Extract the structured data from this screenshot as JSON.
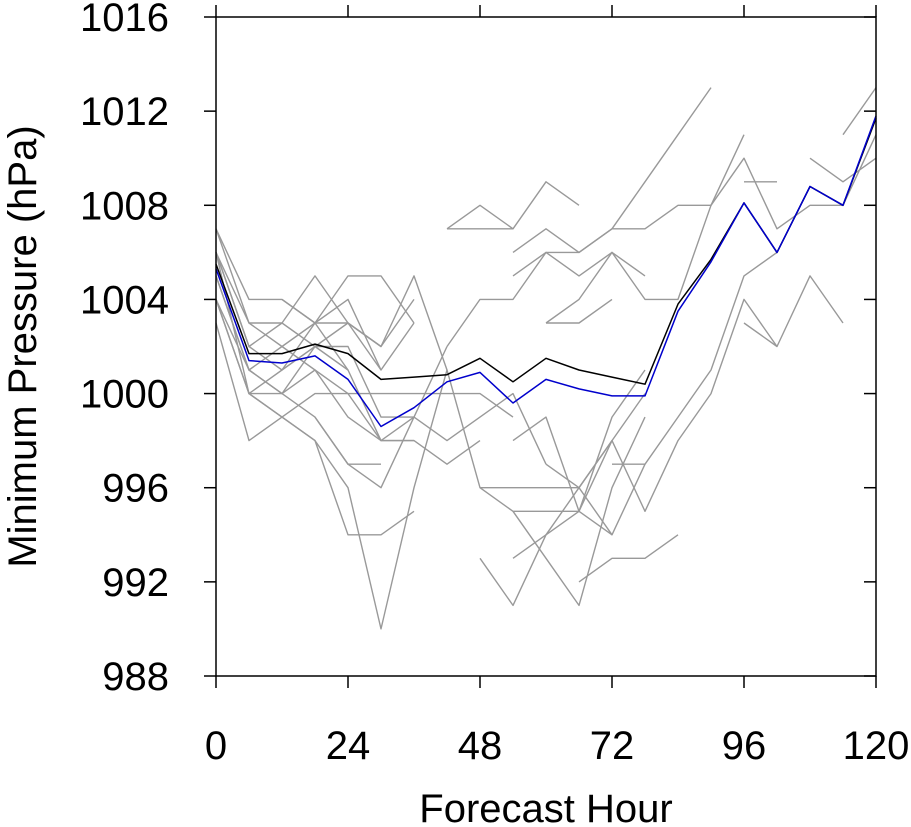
{
  "chart_data": {
    "type": "line",
    "xlabel": "Forecast Hour",
    "ylabel": "Minimum Pressure (hPa)",
    "xlim": [
      0,
      120
    ],
    "ylim": [
      988,
      1016
    ],
    "xticks": [
      0,
      24,
      48,
      72,
      96,
      120
    ],
    "yticks": [
      988,
      992,
      996,
      1000,
      1004,
      1008,
      1012,
      1016
    ],
    "grid": false,
    "legend": "none",
    "colors": {
      "members": "#999999",
      "black_line": "#000000",
      "blue_line": "#0000cc"
    },
    "series": [
      {
        "color": "#000000",
        "x": [
          0,
          6,
          12,
          18,
          24,
          30,
          36,
          42,
          48,
          54,
          60,
          66,
          72,
          78,
          84,
          90,
          96,
          102,
          108,
          114,
          120
        ],
        "y": [
          1005.5,
          1001.7,
          1001.7,
          1002.1,
          1001.7,
          1000.6,
          1000.7,
          1000.8,
          1001.5,
          1000.5,
          1001.5,
          1001.0,
          1000.7,
          1000.4,
          1003.8,
          1005.7,
          1008.1,
          1006.0,
          1008.8,
          1008.0,
          1011.7
        ]
      },
      {
        "color": "#0000cc",
        "x": [
          0,
          6,
          12,
          18,
          24,
          30,
          36,
          42,
          48,
          54,
          60,
          66,
          72,
          78,
          84,
          90,
          96,
          102,
          108,
          114,
          120
        ],
        "y": [
          1005.3,
          1001.4,
          1001.3,
          1001.6,
          1000.6,
          998.6,
          999.4,
          1000.5,
          1000.9,
          999.6,
          1000.6,
          1000.2,
          999.9,
          999.9,
          1003.5,
          1005.6,
          1008.1,
          1006.0,
          1008.8,
          1008.0,
          1011.8
        ]
      },
      {
        "color": "#999999",
        "x": [
          0,
          6,
          12,
          18,
          24
        ],
        "y": [
          1006,
          1002,
          1001,
          1003,
          1001
        ]
      },
      {
        "color": "#999999",
        "x": [
          0,
          6,
          12,
          18,
          24,
          30,
          36
        ],
        "y": [
          1007,
          1004,
          1004,
          1003,
          1005,
          1005,
          1003
        ]
      },
      {
        "color": "#999999",
        "x": [
          0,
          6,
          12,
          18,
          24,
          30,
          36
        ],
        "y": [
          1006,
          1003,
          1003,
          1005,
          1003,
          1002,
          1004
        ]
      },
      {
        "color": "#999999",
        "x": [
          0,
          6,
          12,
          18,
          24,
          30,
          36,
          42,
          48
        ],
        "y": [
          1005,
          1001,
          1002,
          1001,
          999,
          998,
          998,
          997,
          998
        ]
      },
      {
        "color": "#999999",
        "x": [
          0,
          6,
          12,
          18,
          24,
          30,
          36
        ],
        "y": [
          1004,
          1000,
          999,
          998,
          994,
          994,
          995
        ]
      },
      {
        "color": "#999999",
        "x": [
          0,
          6,
          12,
          18,
          24,
          30,
          36,
          42,
          48,
          54
        ],
        "y": [
          1003,
          998,
          999,
          1000,
          1000,
          1000,
          1000,
          1000,
          1000,
          999
        ]
      },
      {
        "color": "#999999",
        "x": [
          0,
          6,
          12,
          18,
          24,
          30
        ],
        "y": [
          1007,
          1003,
          1002,
          1003,
          1004,
          1001
        ]
      },
      {
        "color": "#999999",
        "x": [
          0,
          6,
          12,
          18,
          24,
          30,
          36
        ],
        "y": [
          1004,
          1000,
          1001,
          1002,
          1001,
          998,
          998
        ]
      },
      {
        "color": "#999999",
        "x": [
          0,
          6,
          12,
          18,
          24,
          30,
          36
        ],
        "y": [
          1006,
          1002,
          1003,
          1002,
          1003,
          1001,
          1003
        ]
      },
      {
        "color": "#999999",
        "x": [
          0,
          6,
          12,
          18,
          24,
          30,
          36,
          42
        ],
        "y": [
          1005,
          1001,
          1000,
          1001,
          1000,
          998,
          999,
          1002
        ]
      },
      {
        "color": "#999999",
        "x": [
          0,
          6,
          12,
          18,
          24,
          30
        ],
        "y": [
          1004,
          1001,
          1000,
          999,
          997,
          997
        ]
      },
      {
        "color": "#999999",
        "x": [
          0,
          6,
          12,
          18,
          24,
          30,
          36
        ],
        "y": [
          1006,
          1000,
          1000,
          1002,
          1002,
          999,
          999
        ]
      },
      {
        "color": "#999999",
        "x": [
          12,
          18,
          24,
          30,
          36,
          42
        ],
        "y": [
          1004,
          1003,
          1003,
          1002,
          1005,
          1001
        ]
      },
      {
        "color": "#999999",
        "x": [
          6,
          12,
          18,
          24,
          30,
          36,
          42,
          48,
          54,
          60,
          66,
          72,
          78
        ],
        "y": [
          1000,
          999,
          998,
          996,
          990,
          996,
          1001,
          996,
          996,
          996,
          996,
          998,
          1000
        ]
      },
      {
        "color": "#999999",
        "x": [
          18,
          24,
          30,
          36,
          42,
          48,
          54,
          60
        ],
        "y": [
          999,
          997,
          996,
          999,
          998,
          999,
          1000,
          997
        ]
      },
      {
        "color": "#999999",
        "x": [
          42,
          48,
          54,
          60,
          66
        ],
        "y": [
          1007,
          1008,
          1007,
          1009,
          1008
        ]
      },
      {
        "color": "#999999",
        "x": [
          42,
          48,
          54
        ],
        "y": [
          1007,
          1007,
          1007
        ]
      },
      {
        "color": "#999999",
        "x": [
          54,
          60,
          66,
          72,
          78,
          84,
          90
        ],
        "y": [
          1006,
          1007,
          1006,
          1007,
          1009,
          1011,
          1013
        ]
      },
      {
        "color": "#999999",
        "x": [
          54,
          60,
          66,
          72,
          78
        ],
        "y": [
          1005,
          1006,
          1005,
          1006,
          1005
        ]
      },
      {
        "color": "#999999",
        "x": [
          42,
          48,
          54,
          60,
          66,
          72,
          78,
          84,
          90,
          96
        ],
        "y": [
          1002,
          1004,
          1004,
          1006,
          1006,
          1007,
          1007,
          1008,
          1008,
          1011
        ]
      },
      {
        "color": "#999999",
        "x": [
          60,
          66,
          72,
          78,
          84,
          90,
          96,
          102,
          108,
          114,
          120
        ],
        "y": [
          1003,
          1004,
          1006,
          1004,
          1004,
          1008,
          1010,
          1007,
          1008,
          1008,
          1011
        ]
      },
      {
        "color": "#999999",
        "x": [
          60,
          66,
          72
        ],
        "y": [
          1003,
          1003,
          1004
        ]
      },
      {
        "color": "#999999",
        "x": [
          54,
          60,
          66,
          72,
          78
        ],
        "y": [
          993,
          994,
          995,
          999,
          1001
        ]
      },
      {
        "color": "#999999",
        "x": [
          48,
          54,
          60,
          66,
          72
        ],
        "y": [
          993,
          991,
          994,
          996,
          998
        ]
      },
      {
        "color": "#999999",
        "x": [
          54,
          60,
          66,
          72,
          78
        ],
        "y": [
          995,
          993,
          991,
          996,
          999
        ]
      },
      {
        "color": "#999999",
        "x": [
          66,
          72,
          78,
          84
        ],
        "y": [
          992,
          993,
          993,
          994
        ]
      },
      {
        "color": "#999999",
        "x": [
          54,
          60,
          66,
          72,
          78,
          84,
          90,
          96,
          102
        ],
        "y": [
          998,
          999,
          995,
          998,
          995,
          998,
          1000,
          1004,
          1002
        ]
      },
      {
        "color": "#999999",
        "x": [
          60,
          66,
          72,
          78,
          84,
          90,
          96,
          102
        ],
        "y": [
          997,
          996,
          994,
          997,
          999,
          1001,
          1005,
          1006
        ]
      },
      {
        "color": "#999999",
        "x": [
          48,
          54,
          60,
          66,
          72
        ],
        "y": [
          996,
          995,
          995,
          995,
          994
        ]
      },
      {
        "color": "#999999",
        "x": [
          72,
          78
        ],
        "y": [
          997,
          997
        ]
      },
      {
        "color": "#999999",
        "x": [
          96,
          102
        ],
        "y": [
          1009,
          1009
        ]
      },
      {
        "color": "#999999",
        "x": [
          96,
          102,
          108,
          114
        ],
        "y": [
          1003,
          1002,
          1005,
          1003
        ]
      },
      {
        "color": "#999999",
        "x": [
          108,
          114,
          120
        ],
        "y": [
          1010,
          1009,
          1010
        ]
      },
      {
        "color": "#999999",
        "x": [
          114,
          120
        ],
        "y": [
          1011,
          1013
        ]
      }
    ]
  }
}
